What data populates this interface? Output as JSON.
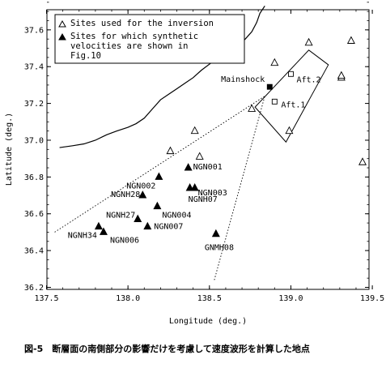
{
  "caption": "図-5　断層面の南側部分の影響だけを考慮して速度波形を計算した地点",
  "chart_data": {
    "type": "scatter",
    "xlabel": "Longitude (deg.)",
    "ylabel": "Latitude (deg.)",
    "xlim": [
      137.5,
      139.5
    ],
    "ylim": [
      36.2,
      37.75
    ],
    "xticks": [
      137.5,
      138.0,
      138.5,
      139.0,
      139.5
    ],
    "xtick_labels": [
      "137.5",
      "138.0",
      "138.5",
      "139.0",
      "139.5"
    ],
    "yticks": [
      36.2,
      36.4,
      36.6,
      36.8,
      37.0,
      37.2,
      37.4,
      37.6
    ],
    "ytick_labels": [
      "36.2",
      "36.4",
      "36.6",
      "36.8",
      "37.0",
      "37.2",
      "37.4",
      "37.6"
    ],
    "legend": {
      "placement": "top-left",
      "entries": [
        {
          "symbol": "open-triangle",
          "lines": [
            "Sites used for the inversion"
          ]
        },
        {
          "symbol": "filled-triangle",
          "lines": [
            "Sites for which synthetic",
            "velocities are shown in",
            "Fig.10"
          ]
        }
      ]
    },
    "series": [
      {
        "name": "Sites used for the inversion",
        "marker": "open-triangle",
        "points": [
          {
            "x": 138.26,
            "y": 36.94
          },
          {
            "x": 138.41,
            "y": 37.05
          },
          {
            "x": 138.44,
            "y": 36.91
          },
          {
            "x": 138.76,
            "y": 37.17
          },
          {
            "x": 138.9,
            "y": 37.42
          },
          {
            "x": 138.99,
            "y": 37.05
          },
          {
            "x": 139.11,
            "y": 37.53
          },
          {
            "x": 139.31,
            "y": 37.34
          },
          {
            "x": 139.31,
            "y": 37.35
          },
          {
            "x": 139.37,
            "y": 37.54
          },
          {
            "x": 139.44,
            "y": 36.88
          }
        ]
      },
      {
        "name": "Sites for which synthetic velocities are shown in Fig.10",
        "marker": "filled-triangle",
        "points": [
          {
            "x": 138.37,
            "y": 36.85,
            "label": "NGN001"
          },
          {
            "x": 138.19,
            "y": 36.8,
            "label": "NGN002"
          },
          {
            "x": 138.38,
            "y": 36.74,
            "label": "NGN003"
          },
          {
            "x": 138.18,
            "y": 36.64,
            "label": "NGN004"
          },
          {
            "x": 137.85,
            "y": 36.5,
            "label": "NGN006"
          },
          {
            "x": 138.12,
            "y": 36.53,
            "label": "NGN007"
          },
          {
            "x": 138.41,
            "y": 36.74,
            "label": "NGNH07"
          },
          {
            "x": 138.54,
            "y": 36.49,
            "label": "GNMH08"
          },
          {
            "x": 138.06,
            "y": 36.57,
            "label": "NGNH27"
          },
          {
            "x": 138.09,
            "y": 36.7,
            "label": "NGNH28"
          },
          {
            "x": 137.82,
            "y": 36.53,
            "label": "NGNH34"
          }
        ]
      }
    ],
    "events": [
      {
        "label": "Mainshock",
        "marker": "filled-square",
        "x": 138.87,
        "y": 37.29
      },
      {
        "label": "Aft.1",
        "marker": "open-square",
        "x": 138.9,
        "y": 37.21
      },
      {
        "label": "Aft.2",
        "marker": "open-square",
        "x": 139.0,
        "y": 37.36
      }
    ],
    "fault_plane": [
      [
        138.78,
        37.18
      ],
      [
        139.11,
        37.49
      ],
      [
        138.97,
        36.99
      ],
      [
        139.23,
        37.41
      ]
    ],
    "dotted_lines": [
      [
        [
          137.55,
          36.5
        ],
        [
          138.84,
          37.24
        ]
      ],
      [
        [
          138.53,
          36.24
        ],
        [
          138.84,
          37.24
        ]
      ]
    ],
    "coastline": [
      [
        137.58,
        36.96
      ],
      [
        137.66,
        36.97
      ],
      [
        137.73,
        36.98
      ],
      [
        137.8,
        37.0
      ],
      [
        137.87,
        37.03
      ],
      [
        137.93,
        37.05
      ],
      [
        138.0,
        37.07
      ],
      [
        138.05,
        37.09
      ],
      [
        138.1,
        37.12
      ],
      [
        138.15,
        37.17
      ],
      [
        138.2,
        37.22
      ],
      [
        138.25,
        37.25
      ],
      [
        138.3,
        37.28
      ],
      [
        138.35,
        37.31
      ],
      [
        138.4,
        37.34
      ],
      [
        138.45,
        37.38
      ],
      [
        138.51,
        37.42
      ],
      [
        138.56,
        37.45
      ],
      [
        138.62,
        37.48
      ],
      [
        138.67,
        37.51
      ],
      [
        138.72,
        37.55
      ],
      [
        138.76,
        37.59
      ],
      [
        138.79,
        37.64
      ],
      [
        138.81,
        37.69
      ],
      [
        138.84,
        37.73
      ]
    ]
  }
}
